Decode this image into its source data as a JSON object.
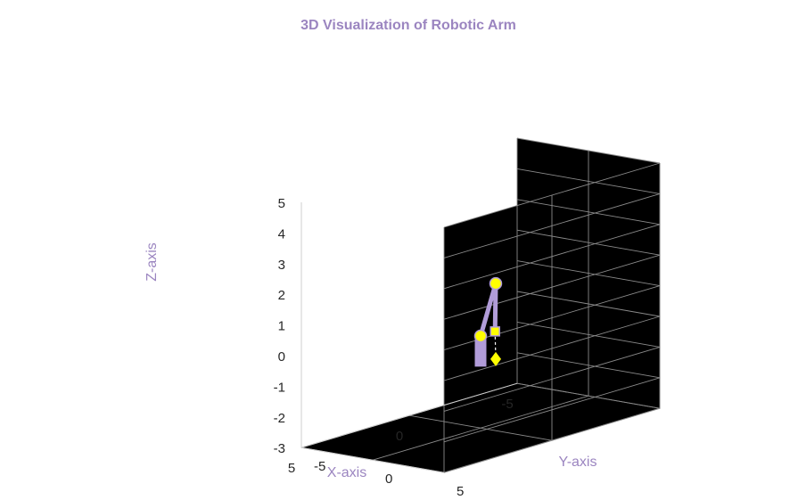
{
  "chart_data": {
    "type": "3d-line",
    "title": "3D Visualization of Robotic Arm",
    "xlabel": "X-axis",
    "ylabel": "Y-axis",
    "zlabel": "Z-axis",
    "xlim": [
      -5,
      5
    ],
    "ylim": [
      -5,
      5
    ],
    "zlim": [
      -3,
      5
    ],
    "x_ticks": [
      "-5",
      "0",
      "5"
    ],
    "y_ticks": [
      "-5",
      "0",
      "5"
    ],
    "z_ticks": [
      "-3",
      "-2",
      "-1",
      "0",
      "1",
      "2",
      "3",
      "4",
      "5"
    ],
    "grid": true,
    "background": "#000000",
    "colors": {
      "arm": "#b19cd9",
      "joint": "#ffff00",
      "axis_label": "#9b85c0",
      "grid": "#8a8a8a",
      "tick_text": "#262626"
    },
    "series": [
      {
        "type": "base",
        "from": [
          0,
          0,
          -1
        ],
        "to": [
          0,
          0,
          0
        ]
      },
      {
        "type": "arm",
        "points": [
          [
            0,
            0,
            0
          ],
          [
            -0.9,
            -0.3,
            1.5
          ],
          [
            -1.0,
            -0.5,
            -0.1
          ]
        ]
      },
      {
        "type": "joints",
        "marker": "circle",
        "points": [
          [
            0,
            0,
            0
          ],
          [
            -0.9,
            -0.3,
            1.5
          ]
        ]
      },
      {
        "type": "end-effector",
        "marker": "square",
        "point": [
          -1.0,
          -0.5,
          -0.1
        ]
      },
      {
        "type": "target",
        "marker": "diamond",
        "point": [
          -1.0,
          -0.45,
          -1.0
        ]
      },
      {
        "type": "target-link",
        "style": "dashed",
        "from": [
          -1.0,
          -0.5,
          -0.1
        ],
        "to": [
          -1.0,
          -0.45,
          -1.0
        ]
      }
    ]
  }
}
